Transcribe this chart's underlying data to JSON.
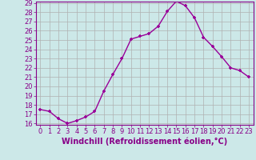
{
  "x": [
    0,
    1,
    2,
    3,
    4,
    5,
    6,
    7,
    8,
    9,
    10,
    11,
    12,
    13,
    14,
    15,
    16,
    17,
    18,
    19,
    20,
    21,
    22,
    23
  ],
  "y": [
    17.5,
    17.3,
    16.5,
    16.0,
    16.3,
    16.7,
    17.3,
    19.5,
    21.3,
    23.0,
    25.1,
    25.4,
    25.7,
    26.5,
    28.1,
    29.2,
    28.7,
    27.4,
    25.3,
    24.3,
    23.2,
    22.0,
    21.7,
    21.0
  ],
  "line_color": "#990099",
  "marker": "+",
  "marker_color": "#990099",
  "bg_color": "#cce8e8",
  "grid_color": "#b0b0b0",
  "xlabel": "Windchill (Refroidissement éolien,°C)",
  "ylim_min": 16,
  "ylim_max": 29,
  "xlim_min": 0,
  "xlim_max": 23,
  "yticks": [
    16,
    17,
    18,
    19,
    20,
    21,
    22,
    23,
    24,
    25,
    26,
    27,
    28,
    29
  ],
  "xticks": [
    0,
    1,
    2,
    3,
    4,
    5,
    6,
    7,
    8,
    9,
    10,
    11,
    12,
    13,
    14,
    15,
    16,
    17,
    18,
    19,
    20,
    21,
    22,
    23
  ],
  "tick_label_color": "#880088",
  "axis_color": "#880088",
  "font_size": 6.0,
  "xlabel_fontsize": 7.0,
  "linewidth": 1.0,
  "markersize": 3.5
}
